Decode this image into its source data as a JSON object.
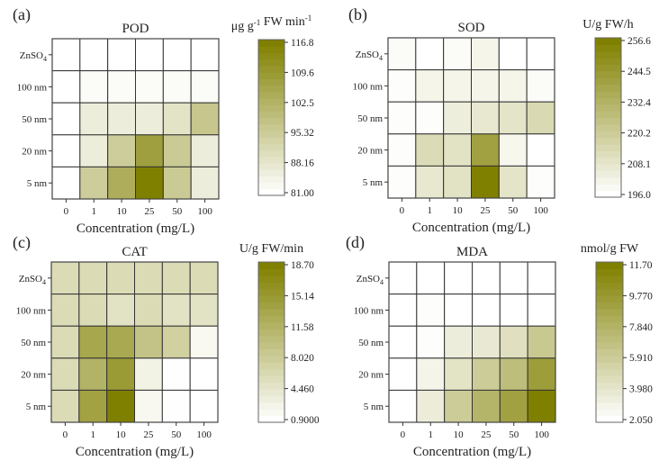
{
  "chart_data": [
    {
      "type": "heatmap",
      "panel_label": "(a)",
      "title": "POD",
      "xlabel": "Concentration (mg/L)",
      "ylabel": "",
      "x_categories": [
        "0",
        "1",
        "10",
        "25",
        "50",
        "100"
      ],
      "y_categories": [
        "ZnSO4",
        "100 nm",
        "50 nm",
        "20 nm",
        "5 nm"
      ],
      "colorbar": {
        "unit_label": "μg g-1 FW min-1",
        "unit_parts": [
          {
            "t": "μg g"
          },
          {
            "t": "-1",
            "sup": true
          },
          {
            "t": " FW min"
          },
          {
            "t": "-1",
            "sup": true
          }
        ],
        "range": [
          81.0,
          116.8
        ],
        "ticks": [
          "81.00",
          "88.16",
          "95.32",
          "102.5",
          "109.6",
          "116.8"
        ],
        "min_color": "#ffffff",
        "max_color": "#808000"
      },
      "values": [
        [
          81.0,
          81.0,
          81.0,
          81.0,
          81.0,
          81.0
        ],
        [
          81.0,
          82.0,
          82.0,
          82.0,
          82.0,
          82.0
        ],
        [
          81.0,
          86.0,
          86.0,
          86.0,
          89.0,
          97.0
        ],
        [
          81.0,
          86.0,
          95.0,
          108.0,
          96.0,
          86.0
        ],
        [
          81.0,
          95.0,
          104.0,
          116.8,
          96.0,
          86.0
        ]
      ]
    },
    {
      "type": "heatmap",
      "panel_label": "(b)",
      "title": "SOD",
      "xlabel": "Concentration (mg/L)",
      "ylabel": "",
      "x_categories": [
        "0",
        "1",
        "10",
        "25",
        "50",
        "100"
      ],
      "y_categories": [
        "ZnSO4",
        "100 nm",
        "50 nm",
        "20 nm",
        "5 nm"
      ],
      "colorbar": {
        "unit_label": "U/g FW/h",
        "unit_parts": [
          {
            "t": "U/g FW/h"
          }
        ],
        "range": [
          196.0,
          256.6
        ],
        "ticks": [
          "196.0",
          "208.1",
          "220.2",
          "232.4",
          "244.5",
          "256.6"
        ],
        "min_color": "#ffffff",
        "max_color": "#808000"
      },
      "values": [
        [
          198,
          196,
          198,
          201,
          196,
          196
        ],
        [
          197,
          201,
          201,
          201,
          201,
          198
        ],
        [
          197,
          197,
          204,
          207,
          209,
          214
        ],
        [
          197,
          213,
          210,
          241,
          200,
          196
        ],
        [
          197,
          207,
          210,
          256.6,
          209,
          197
        ]
      ]
    },
    {
      "type": "heatmap",
      "panel_label": "(c)",
      "title": "CAT",
      "xlabel": "Concentration (mg/L)",
      "ylabel": "",
      "x_categories": [
        "0",
        "1",
        "10",
        "25",
        "50",
        "100"
      ],
      "y_categories": [
        "ZnSO4",
        "100 nm",
        "50 nm",
        "20 nm",
        "5 nm"
      ],
      "colorbar": {
        "unit_label": "U/g FW/min",
        "unit_parts": [
          {
            "t": "U/g FW/min"
          }
        ],
        "range": [
          0.9,
          18.7
        ],
        "ticks": [
          "0.9000",
          "4.460",
          "8.020",
          "11.58",
          "15.14",
          "18.70"
        ],
        "min_color": "#ffffff",
        "max_color": "#808000"
      },
      "values": [
        [
          6.0,
          6.0,
          6.0,
          6.0,
          6.0,
          6.0
        ],
        [
          6.0,
          6.0,
          5.0,
          6.0,
          5.0,
          5.0
        ],
        [
          6.0,
          13.3,
          13.0,
          9.3,
          7.5,
          1.8
        ],
        [
          6.0,
          11.5,
          14.9,
          2.7,
          1.0,
          0.9
        ],
        [
          6.0,
          14.0,
          18.7,
          1.9,
          1.0,
          0.9
        ]
      ]
    },
    {
      "type": "heatmap",
      "panel_label": "(d)",
      "title": "MDA",
      "xlabel": "Concentration (mg/L)",
      "ylabel": "",
      "x_categories": [
        "0",
        "1",
        "10",
        "25",
        "50",
        "100"
      ],
      "y_categories": [
        "ZnSO4",
        "100 nm",
        "50 nm",
        "20 nm",
        "5 nm"
      ],
      "colorbar": {
        "unit_label": "nmol/g FW",
        "unit_parts": [
          {
            "t": "nmol/g FW"
          }
        ],
        "range": [
          2.05,
          11.7
        ],
        "ticks": [
          "2.050",
          "3.980",
          "5.910",
          "7.840",
          "9.770",
          "11.70"
        ],
        "min_color": "#ffffff",
        "max_color": "#808000"
      },
      "values": [
        [
          2.05,
          2.05,
          2.05,
          2.05,
          2.05,
          2.05
        ],
        [
          2.05,
          2.2,
          2.05,
          2.05,
          2.05,
          2.05
        ],
        [
          2.05,
          2.2,
          3.4,
          3.7,
          4.4,
          6.2
        ],
        [
          2.05,
          2.9,
          4.2,
          5.9,
          7.0,
          9.5
        ],
        [
          2.05,
          3.5,
          5.9,
          7.7,
          9.2,
          11.7
        ]
      ]
    }
  ]
}
